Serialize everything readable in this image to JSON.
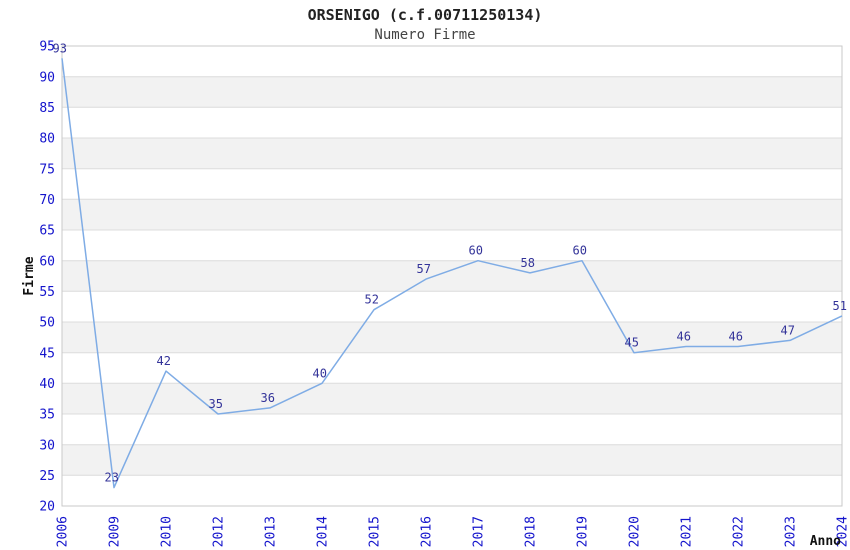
{
  "chart_data": {
    "type": "line",
    "title": "ORSENIGO (c.f.00711250134)",
    "subtitle": "Numero Firme",
    "xlabel": "Anno",
    "ylabel": "Firme",
    "categories": [
      "2006",
      "2009",
      "2010",
      "2012",
      "2013",
      "2014",
      "2015",
      "2016",
      "2017",
      "2018",
      "2019",
      "2020",
      "2021",
      "2022",
      "2023",
      "2024"
    ],
    "series": [
      {
        "name": "Numero Firme",
        "values": [
          93,
          23,
          42,
          35,
          36,
          40,
          52,
          57,
          60,
          58,
          60,
          45,
          46,
          46,
          47,
          51
        ]
      }
    ],
    "point_labels_visible": true,
    "ylim": [
      20,
      95
    ],
    "ytick_step": 5,
    "grid": "horizontal-with-alternating-bands",
    "legend_position": "none",
    "colors": {
      "line": "#7FACE5",
      "tick_label": "#1414CC",
      "value_label": "#333399",
      "band": "#F2F2F2",
      "grid": "#DCDCDC",
      "border": "#C9C9C9",
      "title": "#222222",
      "subtitle": "#444444",
      "axis_title": "#111111",
      "background": "#FFFFFF"
    }
  }
}
